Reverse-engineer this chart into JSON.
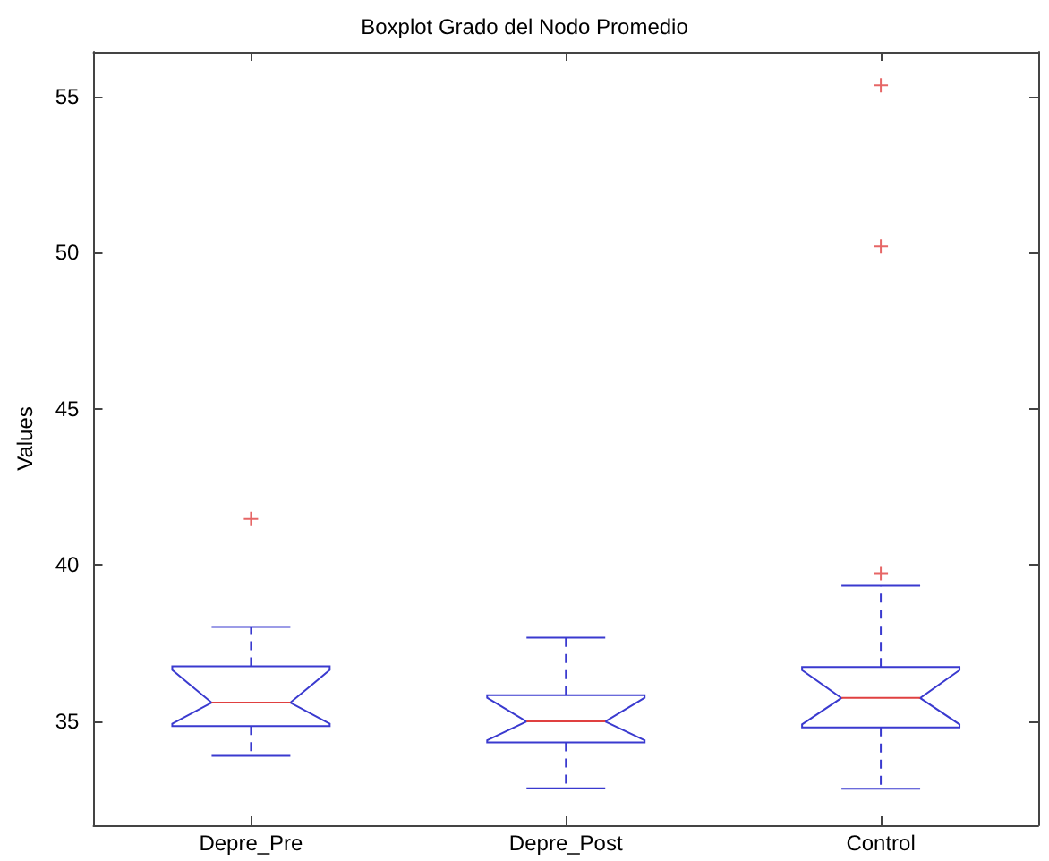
{
  "chart_data": {
    "type": "box",
    "title": "Boxplot Grado del Nodo Promedio",
    "ylabel": "Values",
    "categories": [
      "Depre_Pre",
      "Depre_Post",
      "Control"
    ],
    "boxes": [
      {
        "low": 33.9,
        "q1": 34.85,
        "median": 35.6,
        "q3": 36.76,
        "high": 38.02,
        "outliers": [
          41.48
        ]
      },
      {
        "low": 32.86,
        "q1": 34.33,
        "median": 35.0,
        "q3": 35.84,
        "high": 37.68
      },
      {
        "low": 32.85,
        "q1": 34.81,
        "median": 35.75,
        "q3": 36.74,
        "high": 39.34,
        "outliers": [
          39.74,
          50.2,
          55.35
        ]
      }
    ],
    "ylim": [
      31.68,
      56.42
    ],
    "yticks": [
      35,
      40,
      45,
      50,
      55
    ],
    "grid": false
  }
}
